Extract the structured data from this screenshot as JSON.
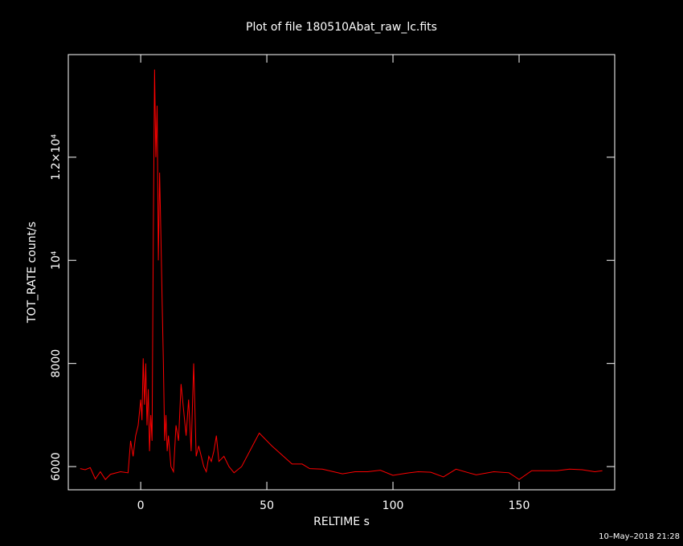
{
  "chart_data": {
    "type": "line",
    "title": "Plot of file 180510Abat_raw_lc.fits",
    "x_label": "RELTIME  s",
    "y_label": "TOT_RATE  count/s",
    "timestamp": "10–May–2018 21:28",
    "color": "#ff0000",
    "x": [
      -24,
      -22,
      -20,
      -18,
      -16,
      -14,
      -12,
      -8,
      -5,
      -4,
      -3,
      -2,
      -1,
      0,
      0.5,
      1,
      1.5,
      2,
      2.5,
      3,
      3.5,
      4,
      4.5,
      5,
      5.5,
      6,
      6.5,
      7,
      7.5,
      8,
      8.5,
      9,
      9.5,
      10,
      10.5,
      11,
      12,
      13,
      14,
      15,
      16,
      17,
      18,
      19,
      20,
      21,
      22,
      23,
      24,
      25,
      26,
      27,
      28,
      29,
      30,
      31,
      33,
      35,
      37,
      40,
      47,
      52,
      60,
      64,
      67,
      72,
      80,
      85,
      90,
      95,
      100,
      105,
      110,
      115,
      120,
      125,
      130,
      133,
      140,
      146,
      150,
      155,
      165,
      170,
      175,
      180,
      183
    ],
    "values": [
      5960,
      5940,
      5980,
      5760,
      5900,
      5750,
      5850,
      5900,
      5880,
      6500,
      6200,
      6600,
      6800,
      7300,
      6900,
      8100,
      7200,
      8000,
      6800,
      7500,
      6300,
      7000,
      6500,
      10500,
      13700,
      12000,
      13000,
      10000,
      11700,
      10500,
      9200,
      8000,
      6500,
      7000,
      6300,
      6600,
      6000,
      5900,
      6800,
      6500,
      7600,
      7100,
      6600,
      7300,
      6300,
      8000,
      6200,
      6400,
      6200,
      6000,
      5900,
      6200,
      6100,
      6300,
      6600,
      6100,
      6200,
      6000,
      5880,
      6000,
      6650,
      6400,
      6050,
      6050,
      5960,
      5950,
      5860,
      5900,
      5900,
      5930,
      5830,
      5870,
      5900,
      5890,
      5800,
      5950,
      5880,
      5840,
      5900,
      5880,
      5750,
      5920,
      5920,
      5950,
      5940,
      5900,
      5920
    ],
    "xlim": [
      -28.7,
      187.9
    ],
    "ylim": [
      5550,
      13990
    ],
    "xticks": [
      0,
      50,
      100,
      150
    ],
    "yticks": [
      6000,
      8000,
      {
        "value": 10000,
        "label": "10⁴"
      },
      {
        "value": 12000,
        "label": "1.2×10⁴"
      }
    ]
  }
}
